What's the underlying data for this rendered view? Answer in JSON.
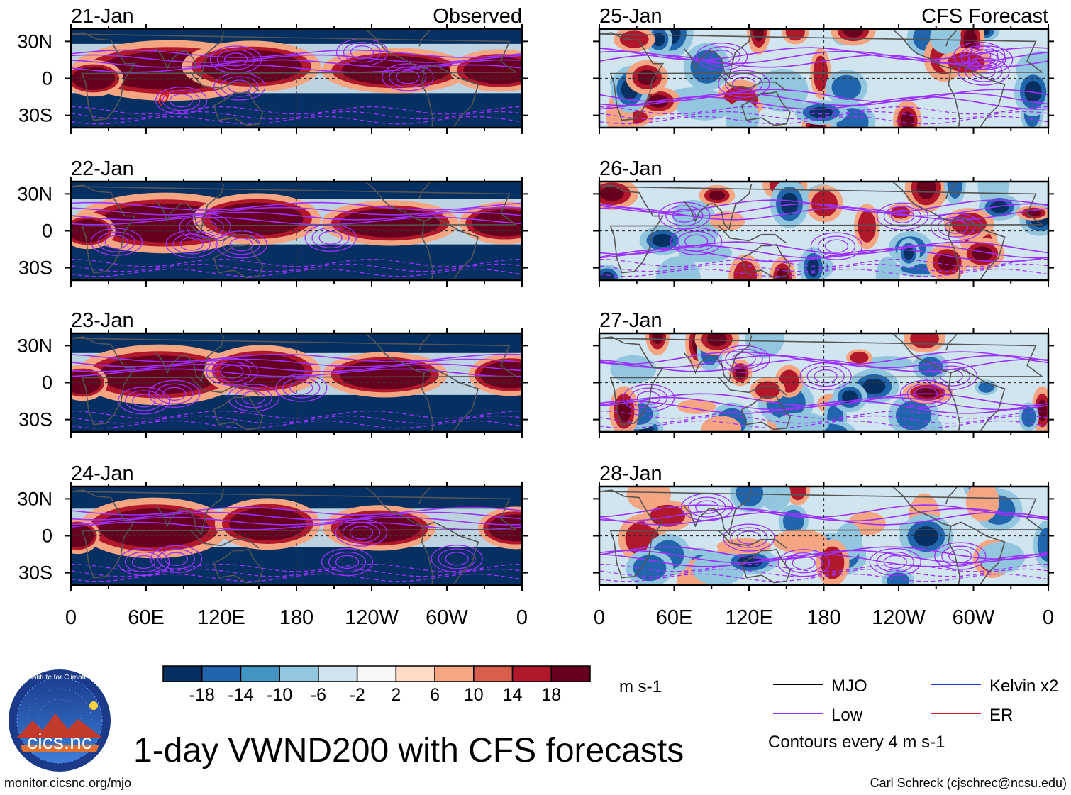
{
  "chart_data": {
    "type": "heatmap",
    "title": "1-day VWND200 with CFS forecasts",
    "variable": "VWND200",
    "units": "m s-1",
    "column_labels": {
      "observed": "Observed",
      "forecast": "CFS Forecast"
    },
    "latitude_ticks": [
      "30N",
      "0",
      "30S"
    ],
    "longitude_ticks": [
      "0",
      "60E",
      "120E",
      "180",
      "120W",
      "60W",
      "0"
    ],
    "latitude_range": [
      -40,
      40
    ],
    "longitude_range": [
      0,
      360
    ],
    "panels": [
      {
        "date": "21-Jan",
        "kind": "observed"
      },
      {
        "date": "22-Jan",
        "kind": "observed"
      },
      {
        "date": "23-Jan",
        "kind": "observed"
      },
      {
        "date": "24-Jan",
        "kind": "observed"
      },
      {
        "date": "25-Jan",
        "kind": "forecast"
      },
      {
        "date": "26-Jan",
        "kind": "forecast"
      },
      {
        "date": "27-Jan",
        "kind": "forecast"
      },
      {
        "date": "28-Jan",
        "kind": "forecast"
      }
    ],
    "colorbar": {
      "levels": [
        -18,
        -14,
        -10,
        -6,
        -2,
        2,
        6,
        10,
        14,
        18
      ],
      "labels": [
        "-18",
        "-14",
        "-10",
        "-6",
        "-2",
        "2",
        "6",
        "10",
        "14",
        "18"
      ],
      "colors": [
        "#053061",
        "#2166ac",
        "#4393c3",
        "#92c5de",
        "#d1e5f0",
        "#f7f7f7",
        "#fddbc7",
        "#f4a582",
        "#d6604d",
        "#b2182b",
        "#67001f"
      ]
    },
    "legend": [
      {
        "label": "MJO",
        "color": "#000000"
      },
      {
        "label": "Kelvin x2",
        "color": "#1f3fd6"
      },
      {
        "label": "Low",
        "color": "#9b30ff"
      },
      {
        "label": "ER",
        "color": "#d62020"
      }
    ],
    "contour_note": "Contours every 4 m s-1"
  },
  "footer": {
    "url": "monitor.cicsnc.org/mjo",
    "credit": "Carl Schreck (cjschrec@ncsu.edu)",
    "logo_text": "cics.nc",
    "logo_ring_text": "Cooperative Institute for Climate and Satellites"
  }
}
